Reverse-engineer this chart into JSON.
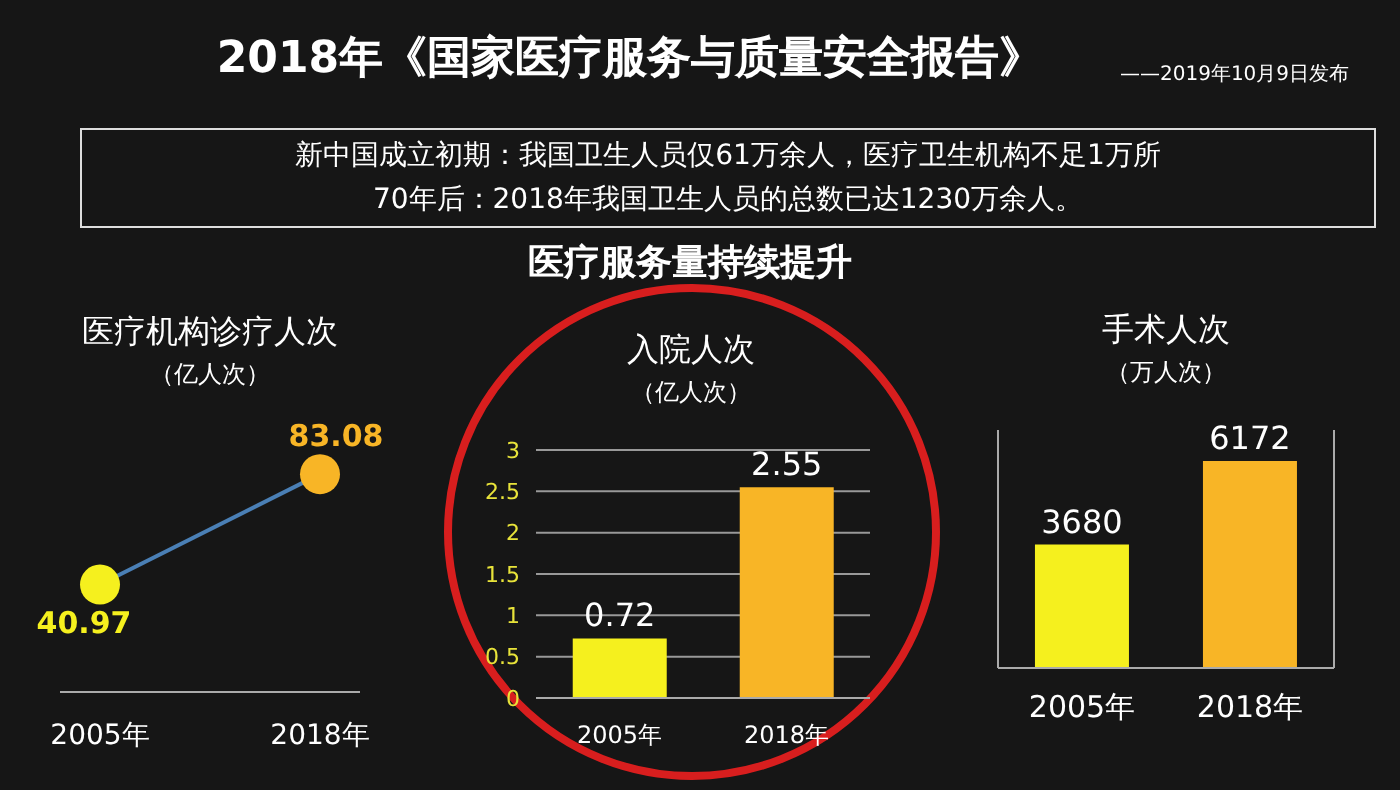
{
  "chart_data": [
    {
      "type": "other",
      "title": "2018年《国家医疗服务与质量安全报告》",
      "subtitle": "医疗服务量持续提升",
      "annotations": [
        "——2019年10月9日发布",
        "新中国成立初期：我国卫生人员仅61万余人，医疗卫生机构不足1万所",
        "70年后：2018年我国卫生人员的总数已达1230万余人。"
      ]
    },
    {
      "type": "line",
      "title": "医疗机构诊疗人次",
      "subtitle": "（亿人次）",
      "categories": [
        "2005年",
        "2018年"
      ],
      "series": [
        {
          "color": "#4a7fb5",
          "colors": [
            "#f5f01e",
            "#f8b526"
          ],
          "values": [
            40.97,
            83.08
          ]
        }
      ],
      "data_labels": true,
      "marker": "circle",
      "tick_labels": "x",
      "grid": false
    },
    {
      "type": "bar",
      "title": "入院人次",
      "subtitle": "（亿人次）",
      "categories": [
        "2005年",
        "2018年"
      ],
      "values": [
        0.72,
        2.55
      ],
      "colors": [
        "#f5f01e",
        "#f8b526"
      ],
      "ylim": [
        0,
        3
      ],
      "yticks": [
        0,
        0.5,
        1,
        1.5,
        2,
        2.5,
        3
      ],
      "grid": "y",
      "data_labels": true
    },
    {
      "type": "bar",
      "title": "手术人次",
      "subtitle": "（万人次）",
      "categories": [
        "2005年",
        "2018年"
      ],
      "values": [
        3680,
        6172
      ],
      "colors": [
        "#f5f01e",
        "#f8b526"
      ],
      "data_labels": true,
      "tick_labels": "x",
      "grid": false
    }
  ]
}
